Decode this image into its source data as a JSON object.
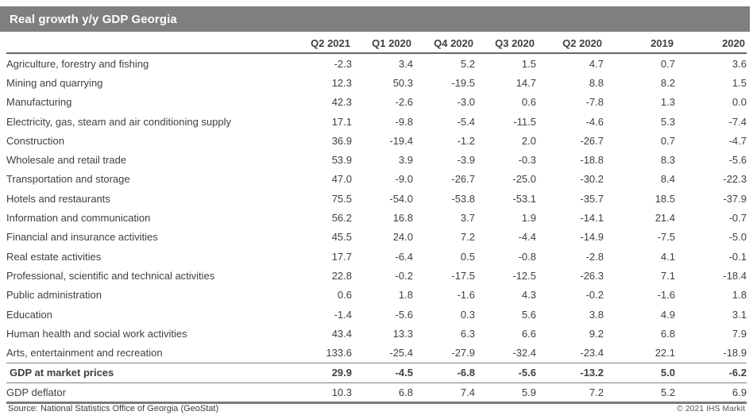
{
  "header": {
    "title": "Real growth y/y GDP Georgia"
  },
  "table": {
    "columns": [
      "Q2 2021",
      "Q1 2020",
      "Q4 2020",
      "Q3 2020",
      "Q2 2020",
      "2019",
      "2020"
    ],
    "rows": [
      {
        "label": "Agriculture, forestry and fishing",
        "values": [
          "-2.3",
          "3.4",
          "5.2",
          "1.5",
          "4.7",
          "0.7",
          "3.6"
        ]
      },
      {
        "label": "Mining and quarrying",
        "values": [
          "12.3",
          "50.3",
          "-19.5",
          "14.7",
          "8.8",
          "8.2",
          "1.5"
        ]
      },
      {
        "label": "Manufacturing",
        "values": [
          "42.3",
          "-2.6",
          "-3.0",
          "0.6",
          "-7.8",
          "1.3",
          "0.0"
        ]
      },
      {
        "label": "Electricity, gas, steam and air conditioning supply",
        "values": [
          "17.1",
          "-9.8",
          "-5.4",
          "-11.5",
          "-4.6",
          "5.3",
          "-7.4"
        ]
      },
      {
        "label": "Construction",
        "values": [
          "36.9",
          "-19.4",
          "-1.2",
          "2.0",
          "-26.7",
          "0.7",
          "-4.7"
        ]
      },
      {
        "label": "Wholesale and retail trade",
        "values": [
          "53.9",
          "3.9",
          "-3.9",
          "-0.3",
          "-18.8",
          "8.3",
          "-5.6"
        ]
      },
      {
        "label": "Transportation and storage",
        "values": [
          "47.0",
          "-9.0",
          "-26.7",
          "-25.0",
          "-30.2",
          "8.4",
          "-22.3"
        ]
      },
      {
        "label": "Hotels and restaurants",
        "values": [
          "75.5",
          "-54.0",
          "-53.8",
          "-53.1",
          "-35.7",
          "18.5",
          "-37.9"
        ]
      },
      {
        "label": "Information and communication",
        "values": [
          "56.2",
          "16.8",
          "3.7",
          "1.9",
          "-14.1",
          "21.4",
          "-0.7"
        ]
      },
      {
        "label": "Financial and insurance activities",
        "values": [
          "45.5",
          "24.0",
          "7.2",
          "-4.4",
          "-14.9",
          "-7.5",
          "-5.0"
        ]
      },
      {
        "label": "Real estate activities",
        "values": [
          "17.7",
          "-6.4",
          "0.5",
          "-0.8",
          "-2.8",
          "4.1",
          "-0.1"
        ]
      },
      {
        "label": "Professional, scientific and technical activities",
        "values": [
          "22.8",
          "-0.2",
          "-17.5",
          "-12.5",
          "-26.3",
          "7.1",
          "-18.4"
        ]
      },
      {
        "label": "Public administration",
        "values": [
          "0.6",
          "1.8",
          "-1.6",
          "4.3",
          "-0.2",
          "-1.6",
          "1.8"
        ]
      },
      {
        "label": "Education",
        "values": [
          "-1.4",
          "-5.6",
          "0.3",
          "5.6",
          "3.8",
          "4.9",
          "3.1"
        ]
      },
      {
        "label": "Human health and social work activities",
        "values": [
          "43.4",
          "13.3",
          "6.3",
          "6.6",
          "9.2",
          "6.8",
          "7.9"
        ]
      },
      {
        "label": "Arts, entertainment and recreation",
        "values": [
          "133.6",
          "-25.4",
          "-27.9",
          "-32.4",
          "-23.4",
          "22.1",
          "-18.9"
        ]
      }
    ],
    "summary_row": {
      "label": "GDP at market prices",
      "values": [
        "29.9",
        "-4.5",
        "-6.8",
        "-5.6",
        "-13.2",
        "5.0",
        "-6.2"
      ]
    },
    "deflator_row": {
      "label": "GDP deflator",
      "values": [
        "10.3",
        "6.8",
        "7.4",
        "5.9",
        "7.2",
        "5.2",
        "6.9"
      ]
    }
  },
  "footer": {
    "source": "Source: National Statistics Office of Georgia (GeoStat)",
    "copyright": "© 2021 IHS Markit"
  },
  "colors": {
    "header_bar": "#7f7f7f",
    "title_text": "#ffffff",
    "body_text": "#3f3f3f",
    "rule_heavy": "#666666",
    "rule_light": "#808080"
  },
  "chart_data": {
    "type": "table",
    "title": "Real growth y/y GDP Georgia",
    "columns": [
      "Q2 2021",
      "Q1 2020",
      "Q4 2020",
      "Q3 2020",
      "Q2 2020",
      "2019",
      "2020"
    ],
    "rows": [
      {
        "category": "Agriculture, forestry and fishing",
        "values": [
          -2.3,
          3.4,
          5.2,
          1.5,
          4.7,
          0.7,
          3.6
        ]
      },
      {
        "category": "Mining and quarrying",
        "values": [
          12.3,
          50.3,
          -19.5,
          14.7,
          8.8,
          8.2,
          1.5
        ]
      },
      {
        "category": "Manufacturing",
        "values": [
          42.3,
          -2.6,
          -3.0,
          0.6,
          -7.8,
          1.3,
          0.0
        ]
      },
      {
        "category": "Electricity, gas, steam and air conditioning supply",
        "values": [
          17.1,
          -9.8,
          -5.4,
          -11.5,
          -4.6,
          5.3,
          -7.4
        ]
      },
      {
        "category": "Construction",
        "values": [
          36.9,
          -19.4,
          -1.2,
          2.0,
          -26.7,
          0.7,
          -4.7
        ]
      },
      {
        "category": "Wholesale and retail trade",
        "values": [
          53.9,
          3.9,
          -3.9,
          -0.3,
          -18.8,
          8.3,
          -5.6
        ]
      },
      {
        "category": "Transportation and storage",
        "values": [
          47.0,
          -9.0,
          -26.7,
          -25.0,
          -30.2,
          8.4,
          -22.3
        ]
      },
      {
        "category": "Hotels and restaurants",
        "values": [
          75.5,
          -54.0,
          -53.8,
          -53.1,
          -35.7,
          18.5,
          -37.9
        ]
      },
      {
        "category": "Information and communication",
        "values": [
          56.2,
          16.8,
          3.7,
          1.9,
          -14.1,
          21.4,
          -0.7
        ]
      },
      {
        "category": "Financial and insurance activities",
        "values": [
          45.5,
          24.0,
          7.2,
          -4.4,
          -14.9,
          -7.5,
          -5.0
        ]
      },
      {
        "category": "Real estate activities",
        "values": [
          17.7,
          -6.4,
          0.5,
          -0.8,
          -2.8,
          4.1,
          -0.1
        ]
      },
      {
        "category": "Professional, scientific and technical activities",
        "values": [
          22.8,
          -0.2,
          -17.5,
          -12.5,
          -26.3,
          7.1,
          -18.4
        ]
      },
      {
        "category": "Public administration",
        "values": [
          0.6,
          1.8,
          -1.6,
          4.3,
          -0.2,
          -1.6,
          1.8
        ]
      },
      {
        "category": "Education",
        "values": [
          -1.4,
          -5.6,
          0.3,
          5.6,
          3.8,
          4.9,
          3.1
        ]
      },
      {
        "category": "Human health and social work activities",
        "values": [
          43.4,
          13.3,
          6.3,
          6.6,
          9.2,
          6.8,
          7.9
        ]
      },
      {
        "category": "Arts, entertainment and recreation",
        "values": [
          133.6,
          -25.4,
          -27.9,
          -32.4,
          -23.4,
          22.1,
          -18.9
        ]
      },
      {
        "category": "GDP at market prices",
        "values": [
          29.9,
          -4.5,
          -6.8,
          -5.6,
          -13.2,
          5.0,
          -6.2
        ]
      },
      {
        "category": "GDP deflator",
        "values": [
          10.3,
          6.8,
          7.4,
          5.9,
          7.2,
          5.2,
          6.9
        ]
      }
    ]
  }
}
